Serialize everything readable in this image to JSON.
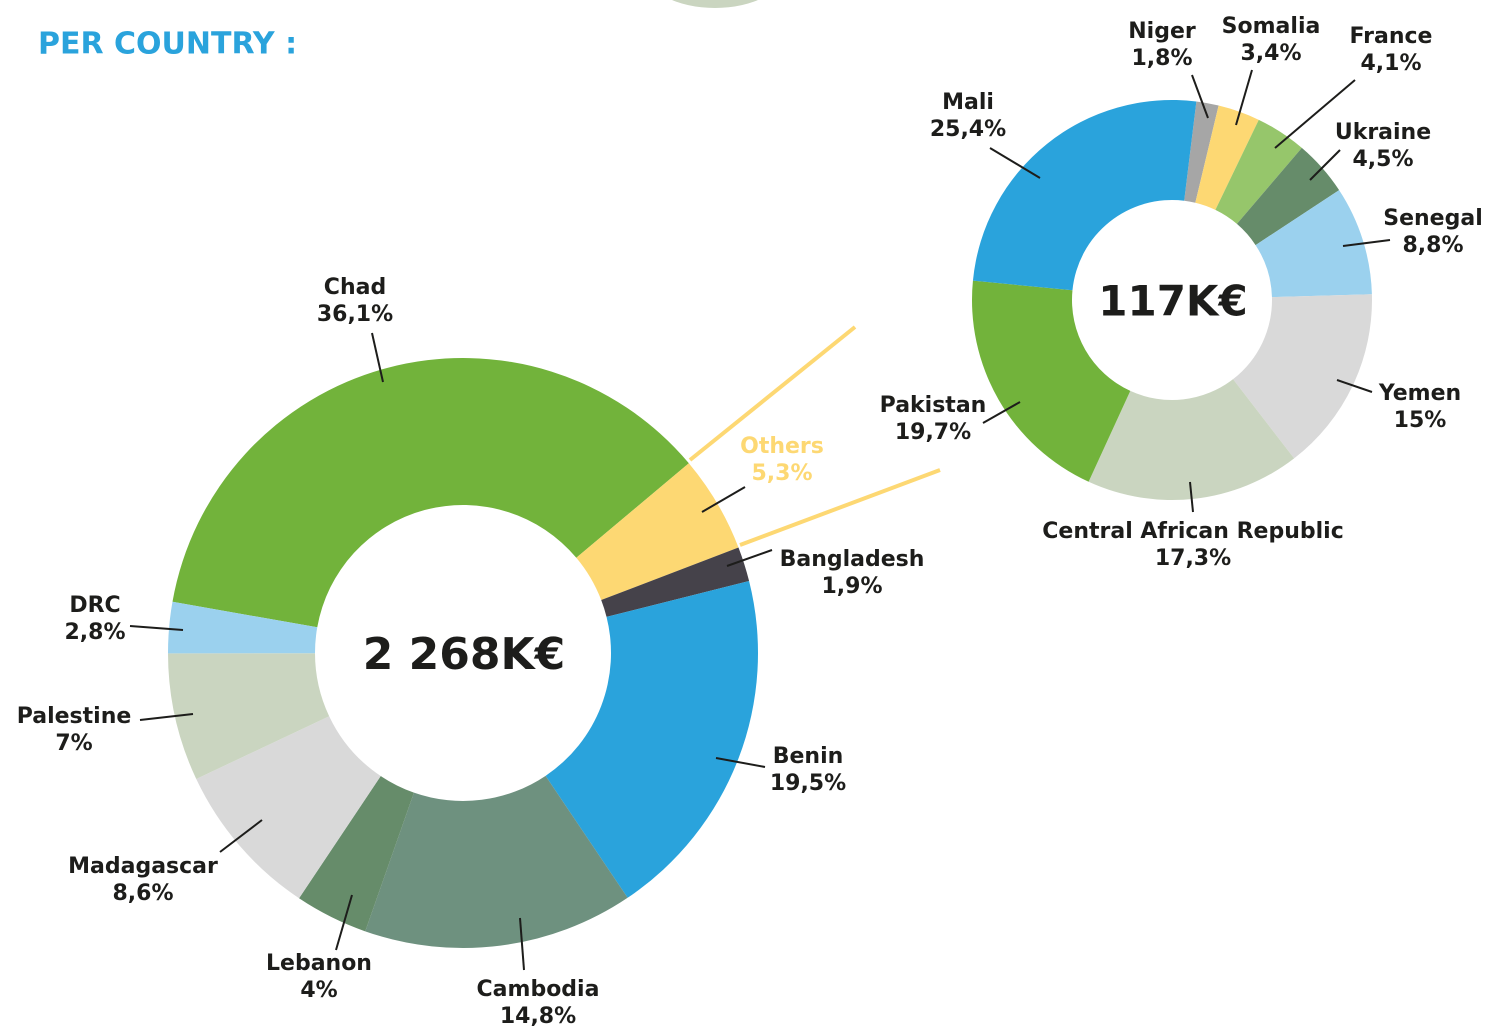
{
  "title": "PER COUNTRY :",
  "chart_data": [
    {
      "type": "donut",
      "center_label": "2 268K€",
      "categories": [
        "Chad",
        "Others",
        "Bangladesh",
        "Benin",
        "Cambodia",
        "Lebanon",
        "Madagascar",
        "Palestine",
        "DRC"
      ],
      "values": [
        36.1,
        5.3,
        1.9,
        19.5,
        14.8,
        4,
        8.6,
        7,
        2.8
      ],
      "value_labels": [
        "36,1%",
        "5,3%",
        "1,9%",
        "19,5%",
        "14,8%",
        "4%",
        "8,6%",
        "7%",
        "2,8%"
      ],
      "colors": [
        "#72b33b",
        "#fdd873",
        "#45424a",
        "#2aa3dc",
        "#6e917f",
        "#668c6a",
        "#d9d9d9",
        "#cad5c0",
        "#9bd1ee"
      ]
    },
    {
      "type": "donut",
      "center_label": "117K€",
      "categories": [
        "Niger",
        "Somalia",
        "France",
        "Ukraine",
        "Senegal",
        "Yemen",
        "Central African Republic",
        "Pakistan",
        "Mali"
      ],
      "values": [
        1.8,
        3.4,
        4.1,
        4.5,
        8.8,
        15,
        17.3,
        19.7,
        25.4
      ],
      "value_labels": [
        "1,8%",
        "3,4%",
        "4,1%",
        "4,5%",
        "8,8%",
        "15%",
        "17,3%",
        "19,7%",
        "25,4%"
      ],
      "colors": [
        "#a6a6a6",
        "#fdd873",
        "#96c66b",
        "#668c6a",
        "#9bd1ee",
        "#d9d9d9",
        "#cad5c0",
        "#72b33b",
        "#2aa3dc"
      ]
    }
  ]
}
